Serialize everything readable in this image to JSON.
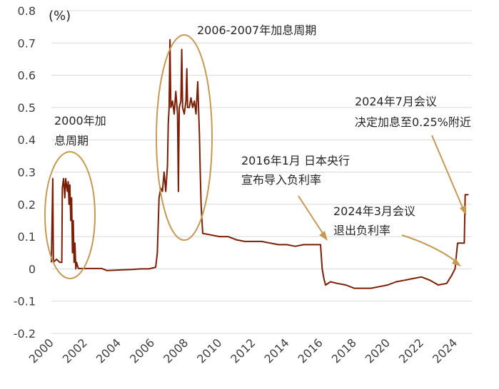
{
  "chart_data": {
    "type": "line",
    "title": "",
    "xlabel": "",
    "ylabel": "",
    "unit_label": "(%)",
    "xlim": [
      2000,
      2025
    ],
    "ylim": [
      -0.2,
      0.8
    ],
    "y_ticks": [
      "0.8",
      "0.7",
      "0.6",
      "0.5",
      "0.4",
      "0.3",
      "0.2",
      "0.1",
      "0",
      "-0.1",
      "-0.2"
    ],
    "x_ticks": [
      "2000",
      "2002",
      "2004",
      "2006",
      "2008",
      "2010",
      "2012",
      "2014",
      "2016",
      "2018",
      "2020",
      "2022",
      "2024"
    ],
    "grid": "horizontal",
    "legend": "none",
    "series": [
      {
        "color": "#7B1E06",
        "points": [
          [
            2000.0,
            0.02
          ],
          [
            2000.08,
            0.28
          ],
          [
            2000.12,
            0.02
          ],
          [
            2000.3,
            0.03
          ],
          [
            2000.5,
            0.02
          ],
          [
            2000.62,
            0.02
          ],
          [
            2000.65,
            0.25
          ],
          [
            2000.72,
            0.28
          ],
          [
            2000.8,
            0.22
          ],
          [
            2000.85,
            0.28
          ],
          [
            2000.95,
            0.24
          ],
          [
            2001.0,
            0.27
          ],
          [
            2001.05,
            0.2
          ],
          [
            2001.1,
            0.26
          ],
          [
            2001.15,
            0.15
          ],
          [
            2001.2,
            0.22
          ],
          [
            2001.25,
            0.05
          ],
          [
            2001.3,
            0.15
          ],
          [
            2001.35,
            0.02
          ],
          [
            2001.4,
            0.08
          ],
          [
            2001.45,
            0.0
          ],
          [
            2001.5,
            0.02
          ],
          [
            2001.6,
            0.001
          ],
          [
            2002.0,
            0.001
          ],
          [
            2002.5,
            0.001
          ],
          [
            2003.0,
            0.001
          ],
          [
            2003.3,
            -0.005
          ],
          [
            2003.8,
            -0.004
          ],
          [
            2004.2,
            -0.003
          ],
          [
            2004.8,
            -0.002
          ],
          [
            2005.3,
            0.0
          ],
          [
            2005.8,
            0.0
          ],
          [
            2006.2,
            0.005
          ],
          [
            2006.3,
            0.05
          ],
          [
            2006.4,
            0.22
          ],
          [
            2006.5,
            0.25
          ],
          [
            2006.6,
            0.24
          ],
          [
            2006.7,
            0.3
          ],
          [
            2006.8,
            0.24
          ],
          [
            2006.9,
            0.32
          ],
          [
            2006.95,
            0.45
          ],
          [
            2007.0,
            0.5
          ],
          [
            2007.05,
            0.71
          ],
          [
            2007.1,
            0.5
          ],
          [
            2007.2,
            0.52
          ],
          [
            2007.3,
            0.48
          ],
          [
            2007.4,
            0.55
          ],
          [
            2007.5,
            0.48
          ],
          [
            2007.55,
            0.24
          ],
          [
            2007.6,
            0.5
          ],
          [
            2007.7,
            0.52
          ],
          [
            2007.75,
            0.68
          ],
          [
            2007.8,
            0.5
          ],
          [
            2007.9,
            0.48
          ],
          [
            2008.0,
            0.52
          ],
          [
            2008.05,
            0.62
          ],
          [
            2008.1,
            0.5
          ],
          [
            2008.2,
            0.5
          ],
          [
            2008.3,
            0.53
          ],
          [
            2008.4,
            0.5
          ],
          [
            2008.5,
            0.52
          ],
          [
            2008.6,
            0.48
          ],
          [
            2008.7,
            0.58
          ],
          [
            2008.75,
            0.5
          ],
          [
            2008.8,
            0.42
          ],
          [
            2008.85,
            0.3
          ],
          [
            2008.9,
            0.2
          ],
          [
            2008.95,
            0.15
          ],
          [
            2009.0,
            0.11
          ],
          [
            2009.5,
            0.105
          ],
          [
            2010.0,
            0.1
          ],
          [
            2010.5,
            0.1
          ],
          [
            2011.0,
            0.09
          ],
          [
            2011.5,
            0.085
          ],
          [
            2012.0,
            0.085
          ],
          [
            2012.5,
            0.085
          ],
          [
            2013.0,
            0.08
          ],
          [
            2013.5,
            0.075
          ],
          [
            2014.0,
            0.075
          ],
          [
            2014.5,
            0.07
          ],
          [
            2015.0,
            0.075
          ],
          [
            2015.5,
            0.075
          ],
          [
            2016.0,
            0.075
          ],
          [
            2016.05,
            0.04
          ],
          [
            2016.1,
            0.0
          ],
          [
            2016.2,
            -0.03
          ],
          [
            2016.3,
            -0.05
          ],
          [
            2016.6,
            -0.04
          ],
          [
            2017.0,
            -0.045
          ],
          [
            2017.5,
            -0.05
          ],
          [
            2018.0,
            -0.06
          ],
          [
            2018.5,
            -0.06
          ],
          [
            2019.0,
            -0.06
          ],
          [
            2019.5,
            -0.055
          ],
          [
            2020.0,
            -0.05
          ],
          [
            2020.5,
            -0.04
          ],
          [
            2021.0,
            -0.035
          ],
          [
            2021.5,
            -0.03
          ],
          [
            2022.0,
            -0.025
          ],
          [
            2022.5,
            -0.035
          ],
          [
            2023.0,
            -0.05
          ],
          [
            2023.5,
            -0.045
          ],
          [
            2023.8,
            -0.02
          ],
          [
            2024.0,
            0.0
          ],
          [
            2024.15,
            0.08
          ],
          [
            2024.4,
            0.08
          ],
          [
            2024.55,
            0.08
          ],
          [
            2024.6,
            0.23
          ],
          [
            2024.8,
            0.23
          ]
        ]
      }
    ],
    "annotations": [
      {
        "text": "2000年加",
        "text2": "息周期"
      },
      {
        "text": "2006-2007年加息周期"
      },
      {
        "text": "2016年1月 日本央行",
        "text2": "宣布导入负利率"
      },
      {
        "text": "2024年3月会议",
        "text2": "退出负利率"
      },
      {
        "text": "2024年7月会议",
        "text2": "决定加息至0.25%附近"
      }
    ],
    "highlight_color": "#C49A55"
  }
}
